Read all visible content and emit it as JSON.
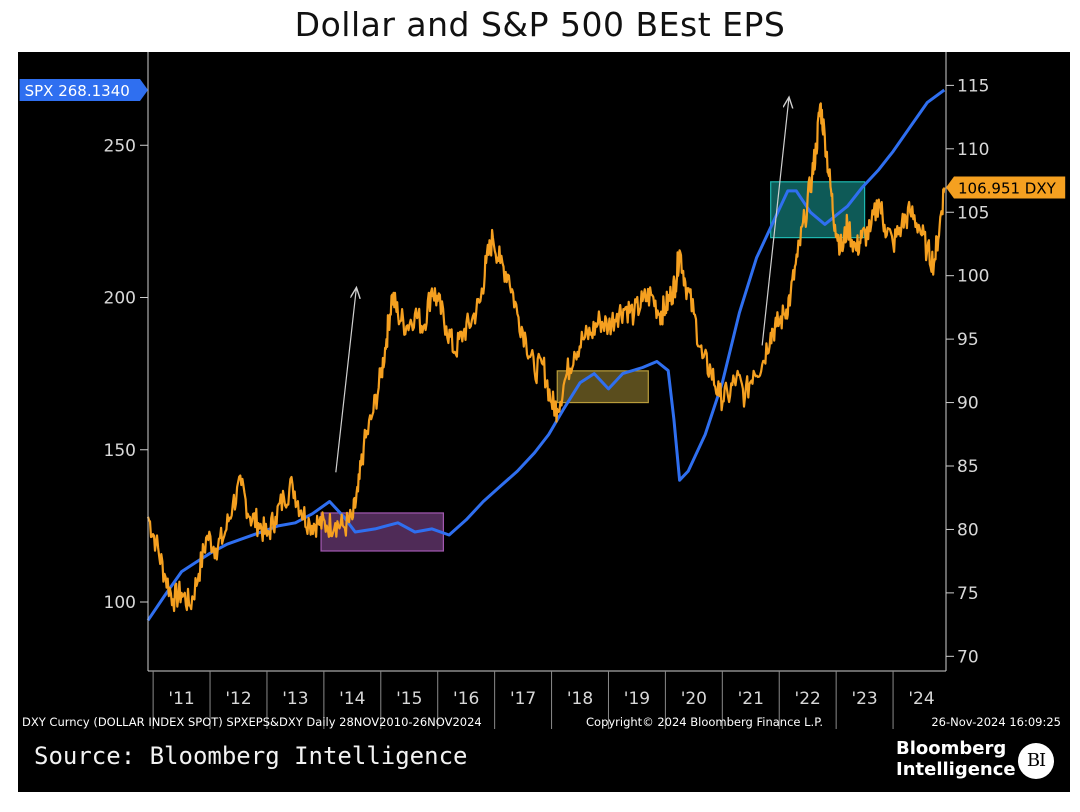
{
  "title": "Dollar and S&P 500 BEst EPS",
  "chart_data": {
    "type": "line",
    "title": "Dollar and S&P 500 BEst EPS",
    "x_range": [
      "2010-11-28",
      "2024-11-26"
    ],
    "x_tick_labels": [
      "'11",
      "'12",
      "'13",
      "'14",
      "'15",
      "'16",
      "'17",
      "'18",
      "'19",
      "'20",
      "'21",
      "'22",
      "'23",
      "'24"
    ],
    "y_left": {
      "ticks": [
        100,
        150,
        200,
        250
      ],
      "range": [
        78,
        278
      ]
    },
    "y_right": {
      "ticks": [
        70,
        75,
        80,
        85,
        90,
        95,
        100,
        105,
        110,
        115
      ],
      "range": [
        69,
        117
      ]
    },
    "grid": false,
    "series": [
      {
        "name": "SPX",
        "axis": "left",
        "color": "#2f6ff0",
        "last_label": "SPX 268.1340",
        "points": [
          [
            2010.91,
            94
          ],
          [
            2011.2,
            102
          ],
          [
            2011.5,
            110
          ],
          [
            2011.75,
            113
          ],
          [
            2012.0,
            116
          ],
          [
            2012.3,
            119
          ],
          [
            2012.6,
            121
          ],
          [
            2012.9,
            123
          ],
          [
            2013.2,
            125
          ],
          [
            2013.5,
            126
          ],
          [
            2013.8,
            129
          ],
          [
            2014.1,
            133
          ],
          [
            2014.35,
            128
          ],
          [
            2014.55,
            123
          ],
          [
            2014.9,
            124
          ],
          [
            2015.3,
            126
          ],
          [
            2015.6,
            123
          ],
          [
            2015.9,
            124
          ],
          [
            2016.2,
            122
          ],
          [
            2016.5,
            127
          ],
          [
            2016.8,
            133
          ],
          [
            2017.1,
            138
          ],
          [
            2017.4,
            143
          ],
          [
            2017.7,
            149
          ],
          [
            2017.95,
            155
          ],
          [
            2018.2,
            163
          ],
          [
            2018.5,
            172
          ],
          [
            2018.75,
            175
          ],
          [
            2019.0,
            170
          ],
          [
            2019.25,
            175
          ],
          [
            2019.6,
            177
          ],
          [
            2019.85,
            179
          ],
          [
            2020.05,
            176
          ],
          [
            2020.15,
            160
          ],
          [
            2020.25,
            140
          ],
          [
            2020.4,
            143
          ],
          [
            2020.7,
            155
          ],
          [
            2021.0,
            172
          ],
          [
            2021.3,
            195
          ],
          [
            2021.6,
            213
          ],
          [
            2021.9,
            225
          ],
          [
            2022.15,
            235
          ],
          [
            2022.3,
            235
          ],
          [
            2022.55,
            228
          ],
          [
            2022.8,
            224
          ],
          [
            2023.0,
            227
          ],
          [
            2023.2,
            230
          ],
          [
            2023.45,
            236
          ],
          [
            2023.75,
            242
          ],
          [
            2024.0,
            248
          ],
          [
            2024.3,
            256
          ],
          [
            2024.6,
            264
          ],
          [
            2024.9,
            268.134
          ]
        ]
      },
      {
        "name": "DXY",
        "axis": "right",
        "color": "#f5a020",
        "last_label": "106.951 DXY",
        "points": [
          [
            2010.91,
            81
          ],
          [
            2011.05,
            79
          ],
          [
            2011.2,
            76.5
          ],
          [
            2011.35,
            74.5
          ],
          [
            2011.5,
            75
          ],
          [
            2011.65,
            74
          ],
          [
            2011.8,
            76.5
          ],
          [
            2011.95,
            79.5
          ],
          [
            2012.1,
            78.5
          ],
          [
            2012.25,
            79.5
          ],
          [
            2012.4,
            82
          ],
          [
            2012.55,
            83.5
          ],
          [
            2012.7,
            81
          ],
          [
            2012.85,
            80.5
          ],
          [
            2013.0,
            79.5
          ],
          [
            2013.15,
            81
          ],
          [
            2013.3,
            82.5
          ],
          [
            2013.45,
            83.5
          ],
          [
            2013.6,
            81.5
          ],
          [
            2013.75,
            80.5
          ],
          [
            2013.9,
            80.5
          ],
          [
            2014.05,
            80.3
          ],
          [
            2014.2,
            80.5
          ],
          [
            2014.35,
            80.2
          ],
          [
            2014.5,
            80.8
          ],
          [
            2014.6,
            83
          ],
          [
            2014.7,
            86.5
          ],
          [
            2014.85,
            89
          ],
          [
            2015.0,
            92
          ],
          [
            2015.1,
            95
          ],
          [
            2015.2,
            98.5
          ],
          [
            2015.3,
            97
          ],
          [
            2015.45,
            96
          ],
          [
            2015.6,
            97
          ],
          [
            2015.75,
            96
          ],
          [
            2015.9,
            99
          ],
          [
            2016.0,
            98
          ],
          [
            2016.15,
            96
          ],
          [
            2016.3,
            94
          ],
          [
            2016.45,
            95.5
          ],
          [
            2016.6,
            96.5
          ],
          [
            2016.75,
            98
          ],
          [
            2016.85,
            101
          ],
          [
            2016.97,
            103
          ],
          [
            2017.1,
            101
          ],
          [
            2017.25,
            100
          ],
          [
            2017.4,
            97
          ],
          [
            2017.55,
            95
          ],
          [
            2017.7,
            92.5
          ],
          [
            2017.85,
            93
          ],
          [
            2018.0,
            90
          ],
          [
            2018.1,
            89.5
          ],
          [
            2018.25,
            92
          ],
          [
            2018.4,
            94
          ],
          [
            2018.55,
            95
          ],
          [
            2018.7,
            95.5
          ],
          [
            2018.85,
            96.5
          ],
          [
            2019.0,
            96
          ],
          [
            2019.15,
            97
          ],
          [
            2019.3,
            97.5
          ],
          [
            2019.45,
            97
          ],
          [
            2019.6,
            98
          ],
          [
            2019.75,
            98.5
          ],
          [
            2019.9,
            97
          ],
          [
            2020.0,
            97.5
          ],
          [
            2020.1,
            98.5
          ],
          [
            2020.18,
            99.5
          ],
          [
            2020.25,
            102
          ],
          [
            2020.35,
            99.5
          ],
          [
            2020.5,
            97
          ],
          [
            2020.65,
            93.5
          ],
          [
            2020.8,
            92.5
          ],
          [
            2020.95,
            90.5
          ],
          [
            2021.1,
            90.5
          ],
          [
            2021.25,
            92
          ],
          [
            2021.4,
            90.5
          ],
          [
            2021.55,
            92.5
          ],
          [
            2021.7,
            93
          ],
          [
            2021.85,
            95.5
          ],
          [
            2021.95,
            96
          ],
          [
            2022.1,
            97
          ],
          [
            2022.2,
            98.5
          ],
          [
            2022.32,
            101.5
          ],
          [
            2022.45,
            104.5
          ],
          [
            2022.58,
            108
          ],
          [
            2022.65,
            110
          ],
          [
            2022.72,
            113.5
          ],
          [
            2022.8,
            111
          ],
          [
            2022.9,
            107
          ],
          [
            2022.98,
            104
          ],
          [
            2023.1,
            102
          ],
          [
            2023.2,
            104
          ],
          [
            2023.35,
            102
          ],
          [
            2023.45,
            103
          ],
          [
            2023.6,
            103.5
          ],
          [
            2023.75,
            106
          ],
          [
            2023.85,
            104
          ],
          [
            2024.0,
            102.5
          ],
          [
            2024.15,
            104
          ],
          [
            2024.3,
            105
          ],
          [
            2024.45,
            104
          ],
          [
            2024.6,
            102
          ],
          [
            2024.72,
            101
          ],
          [
            2024.82,
            104
          ],
          [
            2024.9,
            106.951
          ]
        ]
      }
    ],
    "highlight_boxes": [
      {
        "x": [
          2013.95,
          2016.1
        ],
        "y_right": [
          78.3,
          81.3
        ],
        "color": "#b060c0"
      },
      {
        "x": [
          2018.1,
          2019.7
        ],
        "y_right": [
          90,
          92.5
        ],
        "color": "#c8aa40"
      },
      {
        "x": [
          2021.85,
          2023.5
        ],
        "y_right": [
          103,
          107.4
        ],
        "color": "#20c8c0"
      }
    ],
    "arrows": [
      {
        "from": [
          2014.21,
          84.5
        ],
        "to": [
          2014.57,
          99
        ]
      },
      {
        "from": [
          2021.7,
          94.5
        ],
        "to": [
          2022.17,
          114
        ]
      }
    ]
  },
  "footer": {
    "left": "DXY Curncy (DOLLAR INDEX SPOT) SPXEPS&DXY  Daily 28NOV2010-26NOV2024",
    "center": "Copyright© 2024 Bloomberg Finance L.P.",
    "right": "26-Nov-2024 16:09:25",
    "source": "Source: Bloomberg Intelligence",
    "brand_line1": "Bloomberg",
    "brand_line2": "Intelligence",
    "logo_text": "BI"
  }
}
